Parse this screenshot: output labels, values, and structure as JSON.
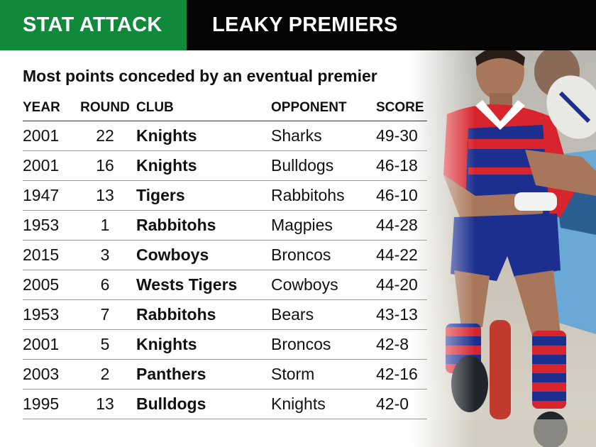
{
  "header": {
    "tag": "STAT ATTACK",
    "title": "LEAKY PREMIERS"
  },
  "subtitle": "Most points conceded by an eventual premier",
  "table": {
    "columns": [
      "YEAR",
      "ROUND",
      "CLUB",
      "OPPONENT",
      "SCORE"
    ],
    "rows": [
      {
        "year": "2001",
        "round": "22",
        "club": "Knights",
        "opponent": "Sharks",
        "score": "49-30"
      },
      {
        "year": "2001",
        "round": "16",
        "club": "Knights",
        "opponent": "Bulldogs",
        "score": "46-18"
      },
      {
        "year": "1947",
        "round": "13",
        "club": "Tigers",
        "opponent": "Rabbitohs",
        "score": "46-10"
      },
      {
        "year": "1953",
        "round": "1",
        "club": "Rabbitohs",
        "opponent": "Magpies",
        "score": "44-28"
      },
      {
        "year": "2015",
        "round": "3",
        "club": "Cowboys",
        "opponent": "Broncos",
        "score": "44-22"
      },
      {
        "year": "2005",
        "round": "6",
        "club": "Wests Tigers",
        "opponent": "Cowboys",
        "score": "44-20"
      },
      {
        "year": "1953",
        "round": "7",
        "club": "Rabbitohs",
        "opponent": "Bears",
        "score": "43-13"
      },
      {
        "year": "2001",
        "round": "5",
        "club": "Knights",
        "opponent": "Broncos",
        "score": "42-8"
      },
      {
        "year": "2003",
        "round": "2",
        "club": "Panthers",
        "opponent": "Storm",
        "score": "42-16"
      },
      {
        "year": "1995",
        "round": "13",
        "club": "Bulldogs",
        "opponent": "Knights",
        "score": "42-0"
      }
    ]
  },
  "colors": {
    "tag_bg": "#10893a",
    "title_bg": "#050505",
    "jersey_red": "#d8242c",
    "jersey_blue": "#1c2f8f"
  },
  "photo": {
    "icon": "rugby-player-photo"
  }
}
